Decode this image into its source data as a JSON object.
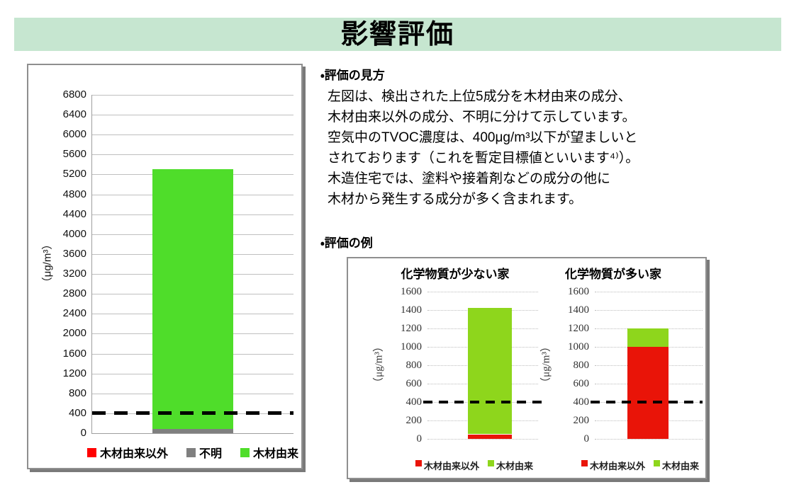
{
  "banner": {
    "title": "影響評価"
  },
  "colors": {
    "banner_bg": "#c6e6d0",
    "box_border": "#8f8f8f",
    "box_shadow": "#7a7a7a",
    "grid_big": "#bfbfbf",
    "grid_mini": "#bdbdbd",
    "axis": "#9e9e9e",
    "guideline": "#000000",
    "wood_green_main": "#4fdd2a",
    "wood_green_example": "#8ed61c",
    "non_wood_red_main": "#ff0000",
    "non_wood_red_example": "#e91408",
    "unknown_gray": "#7f7f7f"
  },
  "guide": {
    "heading": "・評価の見方",
    "lines": [
      "左図は、検出された上位5成分を木材由来の成分、",
      "木材由来以外の成分、不明に分けて示しています。",
      "空気中のTVOC濃度は、400μg/m³以下が望ましいと",
      "されております（これを暫定目標値といいます⁴⁾）。",
      "木造住宅では、塗料や接着剤などの成分の他に",
      "木材から発生する成分が多く含まれます。"
    ]
  },
  "example": {
    "heading": "・評価の例"
  },
  "chart_data": [
    {
      "id": "main",
      "type": "bar",
      "stacked": true,
      "title": "",
      "ylabel": "（μg/m³）",
      "ylim": [
        0,
        6800
      ],
      "ytick_step": 400,
      "guideline_y": 400,
      "grid": true,
      "legend_position": "bottom",
      "categories": [
        ""
      ],
      "series": [
        {
          "name": "木材由来以外",
          "color": "#ff0000",
          "values": [
            0
          ]
        },
        {
          "name": "不明",
          "color": "#7f7f7f",
          "values": [
            80
          ]
        },
        {
          "name": "木材由来",
          "color": "#4fdd2a",
          "values": [
            5220
          ]
        }
      ],
      "total": 5300
    },
    {
      "id": "example-low",
      "type": "bar",
      "stacked": true,
      "title": "化学物質が少ない家",
      "ylabel": "（μg/m³）",
      "ylim": [
        0,
        1600
      ],
      "ytick_step": 200,
      "guideline_y": 400,
      "grid": true,
      "legend_position": "bottom",
      "categories": [
        ""
      ],
      "series": [
        {
          "name": "木材由来以外",
          "color": "#e91408",
          "values": [
            50
          ]
        },
        {
          "name": "木材由来",
          "color": "#8ed61c",
          "values": [
            1370
          ]
        }
      ],
      "total": 1420
    },
    {
      "id": "example-high",
      "type": "bar",
      "stacked": true,
      "title": "化学物質が多い家",
      "ylabel": "（μg/m³）",
      "ylim": [
        0,
        1600
      ],
      "ytick_step": 200,
      "guideline_y": 400,
      "grid": true,
      "legend_position": "bottom",
      "categories": [
        ""
      ],
      "series": [
        {
          "name": "木材由来以外",
          "color": "#e91408",
          "values": [
            1000
          ]
        },
        {
          "name": "木材由来",
          "color": "#8ed61c",
          "values": [
            200
          ]
        }
      ],
      "total": 1200
    }
  ]
}
